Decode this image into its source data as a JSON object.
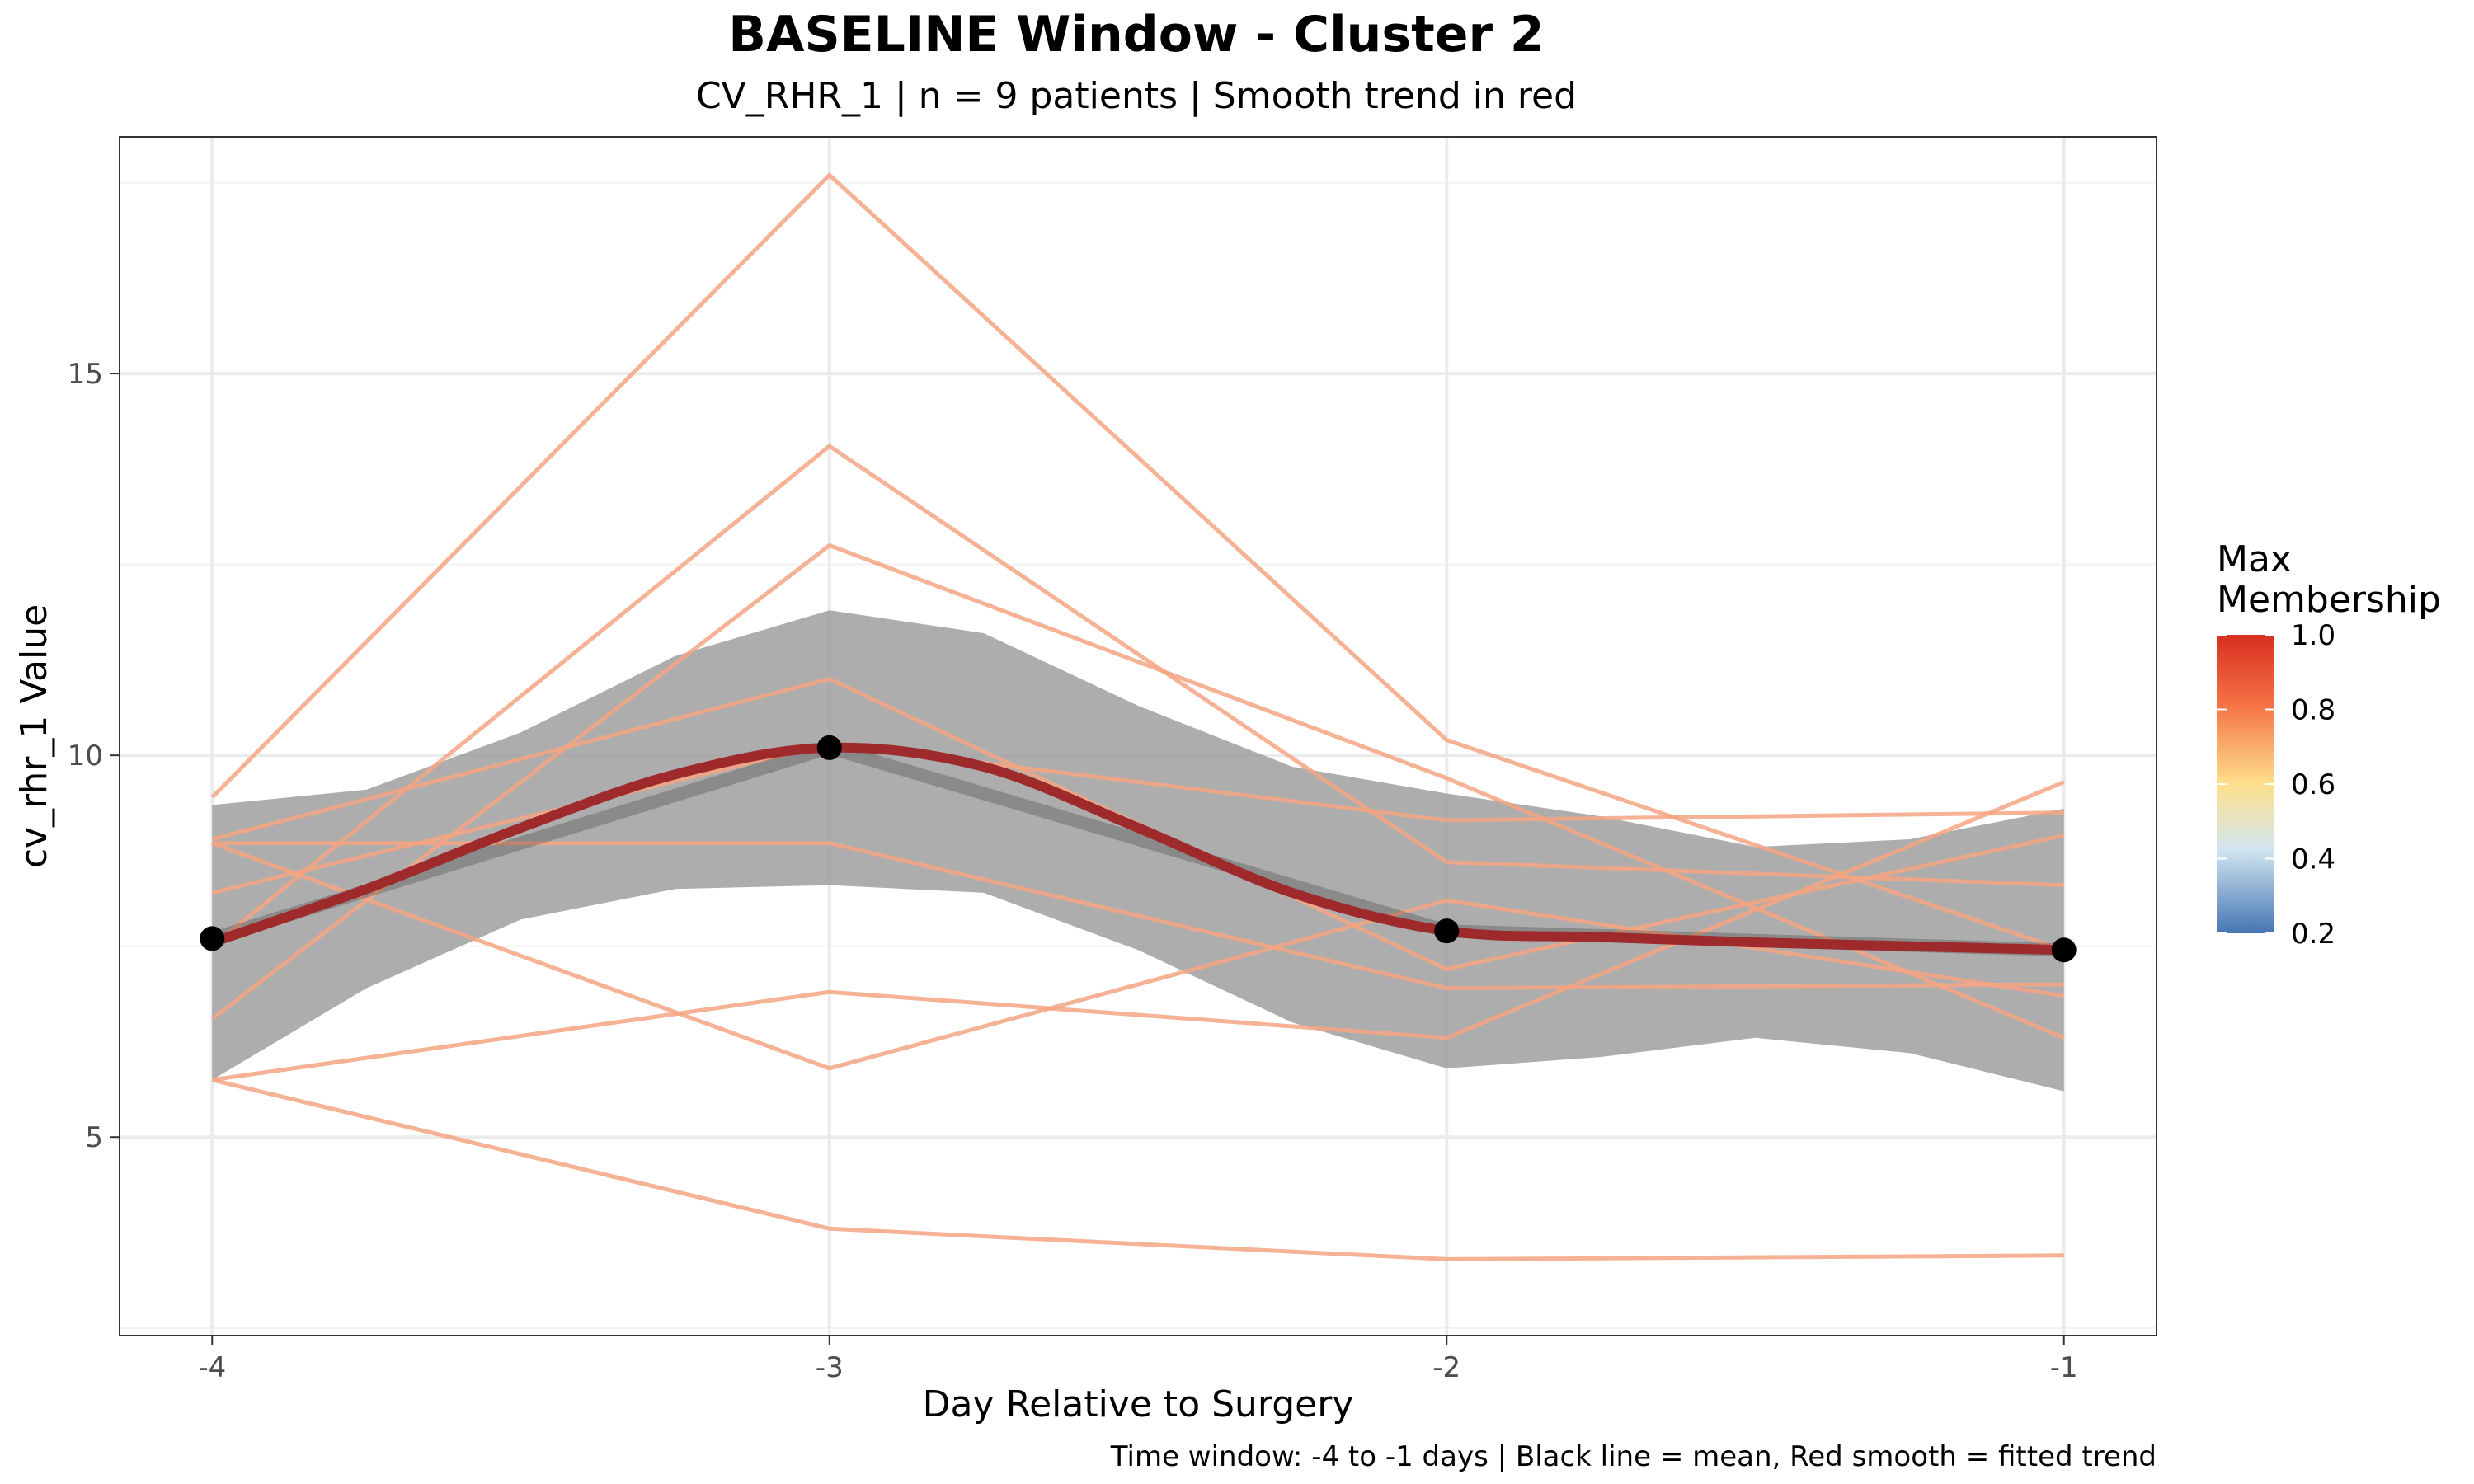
{
  "chart_data": {
    "type": "line",
    "title": "BASELINE Window - Cluster 2",
    "subtitle": "CV_RHR_1 | n = 9 patients | Smooth trend in red",
    "xlabel": "Day Relative to Surgery",
    "ylabel": "cv_rhr_1 Value",
    "caption": "Time window: -4 to -1 days | Black line = mean, Red smooth = fitted trend",
    "x": [
      -4,
      -3,
      -2,
      -1
    ],
    "x_tick_labels": [
      "-4",
      "-3",
      "-2",
      "-1"
    ],
    "xlim": [
      -4.15,
      -0.85
    ],
    "ylim": [
      2.4,
      18.1
    ],
    "y_ticks": [
      5,
      10,
      15
    ],
    "y_tick_labels": [
      "5",
      "10",
      "15"
    ],
    "grid": true,
    "patient_line_color": "#F4A582",
    "mean_color": "#000000",
    "smooth_color": "#9E2A2B",
    "band_color": "#999999",
    "series": [
      {
        "values": [
          9.45,
          17.6,
          10.2,
          7.45
        ]
      },
      {
        "values": [
          7.5,
          14.05,
          8.6,
          8.3
        ]
      },
      {
        "values": [
          6.55,
          12.75,
          9.7,
          6.3
        ]
      },
      {
        "values": [
          8.9,
          11.0,
          7.2,
          8.95
        ]
      },
      {
        "values": [
          8.85,
          8.85,
          6.95,
          7.0
        ]
      },
      {
        "values": [
          8.2,
          10.15,
          9.15,
          9.25
        ]
      },
      {
        "values": [
          5.75,
          6.9,
          6.3,
          9.65
        ]
      },
      {
        "values": [
          8.85,
          5.9,
          8.1,
          6.85
        ]
      },
      {
        "values": [
          5.75,
          3.8,
          3.4,
          3.45
        ]
      }
    ],
    "mean": {
      "values": [
        7.6,
        10.1,
        7.7,
        7.45
      ]
    },
    "smooth": {
      "x": [
        -4,
        -3.75,
        -3.5,
        -3.25,
        -3,
        -2.75,
        -2.5,
        -2.25,
        -2,
        -1.75,
        -1.5,
        -1.25,
        -1
      ],
      "y": [
        7.55,
        8.25,
        9.05,
        9.75,
        10.1,
        9.85,
        9.05,
        8.2,
        7.7,
        7.62,
        7.55,
        7.5,
        7.45
      ],
      "lower": [
        5.75,
        6.95,
        7.85,
        8.25,
        8.3,
        8.2,
        7.45,
        6.5,
        5.9,
        6.05,
        6.3,
        6.1,
        5.6
      ],
      "upper": [
        9.35,
        9.55,
        10.3,
        11.3,
        11.9,
        11.6,
        10.65,
        9.85,
        9.5,
        9.2,
        8.8,
        8.9,
        9.3
      ]
    },
    "legend": {
      "title_lines": [
        "Max",
        "Membership"
      ],
      "labels": [
        "1.0",
        "0.8",
        "0.6",
        "0.4",
        "0.2"
      ],
      "stops": [
        1.0,
        0.8,
        0.6,
        0.4,
        0.2
      ],
      "colors": [
        "#D7301F",
        "#F46D43",
        "#FEE08B",
        "#D1E5F0",
        "#4575B4"
      ],
      "position": "right"
    }
  }
}
